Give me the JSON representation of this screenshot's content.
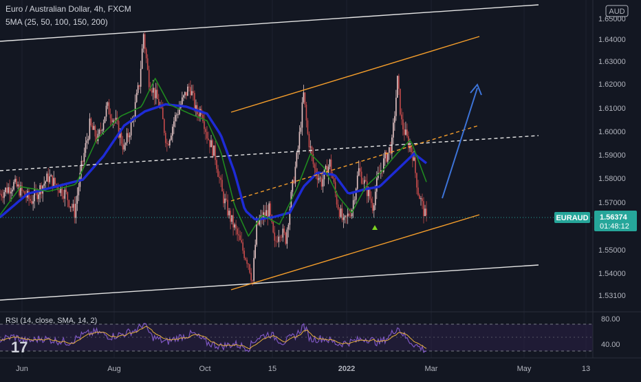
{
  "header": {
    "title": "Euro / Australian Dollar, 4h, FXCM",
    "sma_label": "5MA (25, 50, 100, 150, 200)",
    "rsi_label": "RSI (14, close, SMA, 14, 2)",
    "currency_badge": "AUD"
  },
  "price_tag": {
    "symbol": "EURAUD",
    "price": "1.56374",
    "countdown": "01:48:12"
  },
  "logo": "17",
  "colors": {
    "background": "#131722",
    "candle_up": "#e8c7c7",
    "candle_down": "#c94c4c",
    "sma_blue": "#1e2bd6",
    "sma_green": "#1f8a1f",
    "channel_white": "#e6e6e6",
    "channel_orange": "#f59e2b",
    "arrow_blue": "#3d74d9",
    "price_tag": "#26a69a",
    "rsi_line": "#7e57c2",
    "rsi_sma": "#e8b23c"
  },
  "chart_data": [
    {
      "type": "line",
      "name": "price",
      "x_tick_labels": [
        "Jun",
        "Aug",
        "Oct",
        "15",
        "2022",
        "Mar",
        "May",
        "13"
      ],
      "y_tick_labels": [
        "1.65000",
        "1.64000",
        "1.63000",
        "1.62000",
        "1.61000",
        "1.60000",
        "1.59000",
        "1.58000",
        "1.57000",
        "1.56000",
        "1.55000",
        "1.54000",
        "1.53100"
      ],
      "ylim": [
        1.531,
        1.65
      ],
      "close_path": [
        [
          0,
          1.575
        ],
        [
          20,
          1.579
        ],
        [
          45,
          1.572
        ],
        [
          70,
          1.582
        ],
        [
          95,
          1.575
        ],
        [
          108,
          1.567
        ],
        [
          118,
          1.586
        ],
        [
          130,
          1.604
        ],
        [
          142,
          1.598
        ],
        [
          155,
          1.612
        ],
        [
          168,
          1.605
        ],
        [
          180,
          1.594
        ],
        [
          192,
          1.606
        ],
        [
          202,
          1.622
        ],
        [
          208,
          1.643
        ],
        [
          215,
          1.624
        ],
        [
          222,
          1.619
        ],
        [
          232,
          1.612
        ],
        [
          242,
          1.596
        ],
        [
          252,
          1.606
        ],
        [
          262,
          1.613
        ],
        [
          275,
          1.621
        ],
        [
          285,
          1.609
        ],
        [
          292,
          1.611
        ],
        [
          300,
          1.6
        ],
        [
          312,
          1.591
        ],
        [
          322,
          1.575
        ],
        [
          332,
          1.566
        ],
        [
          342,
          1.559
        ],
        [
          352,
          1.551
        ],
        [
          360,
          1.546
        ],
        [
          366,
          1.538
        ],
        [
          372,
          1.561
        ],
        [
          380,
          1.565
        ],
        [
          390,
          1.568
        ],
        [
          398,
          1.553
        ],
        [
          405,
          1.56
        ],
        [
          414,
          1.556
        ],
        [
          424,
          1.578
        ],
        [
          432,
          1.594
        ],
        [
          440,
          1.617
        ],
        [
          446,
          1.6
        ],
        [
          455,
          1.586
        ],
        [
          466,
          1.58
        ],
        [
          478,
          1.588
        ],
        [
          488,
          1.572
        ],
        [
          498,
          1.562
        ],
        [
          510,
          1.569
        ],
        [
          520,
          1.585
        ],
        [
          530,
          1.578
        ],
        [
          540,
          1.57
        ],
        [
          548,
          1.582
        ],
        [
          558,
          1.59
        ],
        [
          568,
          1.596
        ],
        [
          576,
          1.623
        ],
        [
          582,
          1.605
        ],
        [
          590,
          1.598
        ],
        [
          598,
          1.592
        ],
        [
          606,
          1.576
        ],
        [
          612,
          1.57
        ],
        [
          618,
          1.5637
        ]
      ],
      "sma_blue_path": [
        [
          0,
          1.565
        ],
        [
          40,
          1.575
        ],
        [
          80,
          1.578
        ],
        [
          120,
          1.581
        ],
        [
          150,
          1.591
        ],
        [
          180,
          1.604
        ],
        [
          210,
          1.61
        ],
        [
          240,
          1.613
        ],
        [
          270,
          1.612
        ],
        [
          300,
          1.609
        ],
        [
          320,
          1.6
        ],
        [
          340,
          1.584
        ],
        [
          355,
          1.568
        ],
        [
          370,
          1.564
        ],
        [
          395,
          1.565
        ],
        [
          420,
          1.567
        ],
        [
          440,
          1.578
        ],
        [
          460,
          1.584
        ],
        [
          485,
          1.583
        ],
        [
          505,
          1.575
        ],
        [
          530,
          1.577
        ],
        [
          550,
          1.578
        ],
        [
          575,
          1.585
        ],
        [
          600,
          1.592
        ],
        [
          618,
          1.588
        ]
      ],
      "sma_green_path": [
        [
          0,
          1.566
        ],
        [
          30,
          1.578
        ],
        [
          70,
          1.576
        ],
        [
          110,
          1.579
        ],
        [
          140,
          1.598
        ],
        [
          175,
          1.608
        ],
        [
          205,
          1.612
        ],
        [
          225,
          1.624
        ],
        [
          245,
          1.613
        ],
        [
          275,
          1.609
        ],
        [
          300,
          1.606
        ],
        [
          320,
          1.593
        ],
        [
          340,
          1.57
        ],
        [
          360,
          1.557
        ],
        [
          380,
          1.566
        ],
        [
          405,
          1.562
        ],
        [
          430,
          1.577
        ],
        [
          450,
          1.592
        ],
        [
          470,
          1.586
        ],
        [
          490,
          1.574
        ],
        [
          510,
          1.567
        ],
        [
          530,
          1.578
        ],
        [
          555,
          1.585
        ],
        [
          575,
          1.592
        ],
        [
          595,
          1.598
        ],
        [
          618,
          1.58
        ]
      ]
    },
    {
      "type": "line",
      "name": "RSI",
      "y_tick_labels": [
        "80.00",
        "40.00"
      ],
      "ylim": [
        20,
        90
      ],
      "bands": [
        70,
        50,
        30
      ],
      "path": [
        [
          0,
          50
        ],
        [
          20,
          55
        ],
        [
          40,
          46
        ],
        [
          60,
          52
        ],
        [
          80,
          48
        ],
        [
          100,
          45
        ],
        [
          120,
          58
        ],
        [
          140,
          63
        ],
        [
          160,
          55
        ],
        [
          180,
          60
        ],
        [
          200,
          68
        ],
        [
          208,
          78
        ],
        [
          220,
          55
        ],
        [
          240,
          45
        ],
        [
          260,
          54
        ],
        [
          280,
          60
        ],
        [
          300,
          44
        ],
        [
          320,
          38
        ],
        [
          340,
          42
        ],
        [
          360,
          35
        ],
        [
          372,
          52
        ],
        [
          390,
          60
        ],
        [
          410,
          45
        ],
        [
          430,
          58
        ],
        [
          440,
          75
        ],
        [
          450,
          50
        ],
        [
          470,
          52
        ],
        [
          490,
          42
        ],
        [
          510,
          46
        ],
        [
          530,
          52
        ],
        [
          550,
          44
        ],
        [
          565,
          56
        ],
        [
          576,
          72
        ],
        [
          590,
          50
        ],
        [
          605,
          38
        ],
        [
          618,
          30
        ]
      ]
    }
  ]
}
